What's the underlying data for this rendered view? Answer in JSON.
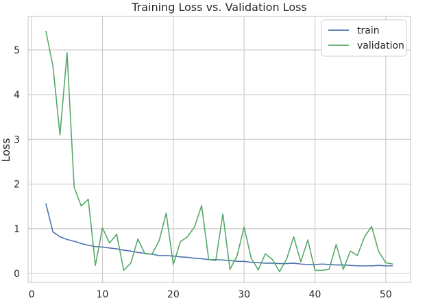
{
  "chart_data": {
    "type": "line",
    "title": "Training Loss vs. Validation Loss",
    "xlabel": "",
    "ylabel": "Loss",
    "xlim": [
      -0.5,
      53.5
    ],
    "ylim": [
      -0.2,
      5.75
    ],
    "xticks": [
      0,
      10,
      20,
      30,
      40,
      50
    ],
    "yticks": [
      0,
      1,
      2,
      3,
      4,
      5
    ],
    "grid": true,
    "legend_position": "top-right",
    "x": [
      2,
      3,
      4,
      5,
      6,
      7,
      8,
      9,
      10,
      11,
      12,
      13,
      14,
      15,
      16,
      17,
      18,
      19,
      20,
      21,
      22,
      23,
      24,
      25,
      26,
      27,
      28,
      29,
      30,
      31,
      32,
      33,
      34,
      35,
      36,
      37,
      38,
      39,
      40,
      41,
      42,
      43,
      44,
      45,
      46,
      47,
      48,
      49,
      50,
      51
    ],
    "series": [
      {
        "name": "train",
        "color": "#4c72b0",
        "values": [
          1.57,
          0.93,
          0.82,
          0.76,
          0.72,
          0.67,
          0.63,
          0.6,
          0.59,
          0.57,
          0.55,
          0.52,
          0.5,
          0.47,
          0.45,
          0.43,
          0.4,
          0.4,
          0.39,
          0.37,
          0.36,
          0.34,
          0.33,
          0.31,
          0.31,
          0.3,
          0.29,
          0.27,
          0.27,
          0.25,
          0.24,
          0.23,
          0.23,
          0.22,
          0.22,
          0.23,
          0.21,
          0.2,
          0.2,
          0.21,
          0.2,
          0.19,
          0.19,
          0.18,
          0.17,
          0.17,
          0.17,
          0.18,
          0.17,
          0.17
        ]
      },
      {
        "name": "validation",
        "color": "#55a868",
        "values": [
          5.43,
          4.65,
          3.1,
          4.94,
          1.93,
          1.51,
          1.66,
          0.18,
          1.02,
          0.68,
          0.88,
          0.07,
          0.23,
          0.77,
          0.44,
          0.43,
          0.73,
          1.35,
          0.2,
          0.71,
          0.82,
          1.04,
          1.52,
          0.31,
          0.29,
          1.33,
          0.09,
          0.39,
          1.04,
          0.34,
          0.08,
          0.44,
          0.31,
          0.04,
          0.32,
          0.82,
          0.26,
          0.75,
          0.07,
          0.07,
          0.09,
          0.65,
          0.09,
          0.5,
          0.4,
          0.82,
          1.05,
          0.49,
          0.24,
          0.21
        ]
      }
    ]
  }
}
